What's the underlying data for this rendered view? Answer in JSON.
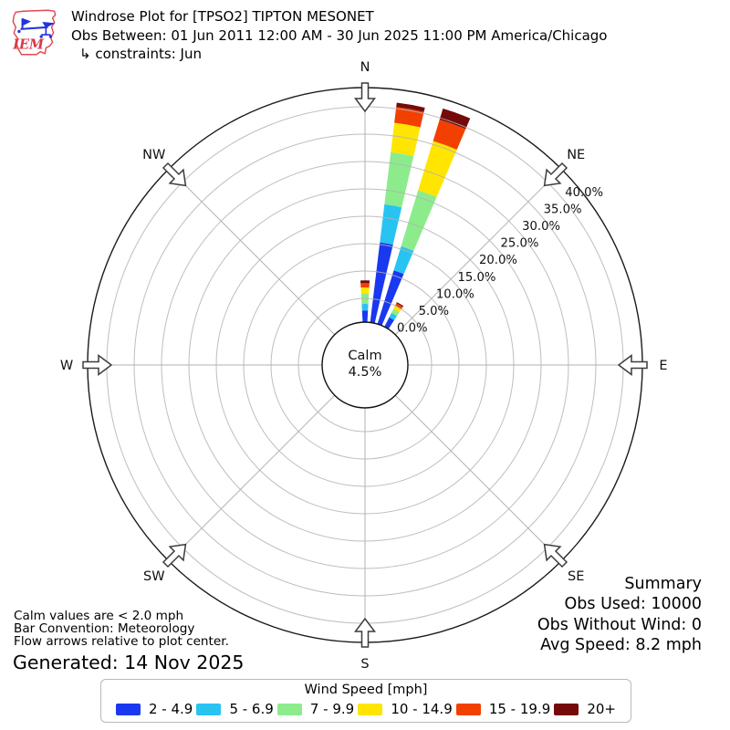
{
  "header": {
    "logo_text": "IEM",
    "title": "Windrose Plot for [TPSO2] TIPTON MESONET",
    "subtitle": "Obs Between: 01 Jun 2011 12:00 AM - 30 Jun 2025 11:00 PM America/Chicago",
    "constraints": "↳ constraints: Jun"
  },
  "chart_data": {
    "type": "windrose",
    "units": "mph",
    "bar_convention": "Meteorology",
    "calm": {
      "label": "Calm",
      "value": "4.5%"
    },
    "radial_tick_pcts": [
      0,
      5,
      10,
      15,
      20,
      25,
      30,
      35,
      40
    ],
    "radial_tick_labels": [
      "0.0%",
      "5.0%",
      "10.0%",
      "15.0%",
      "20.0%",
      "25.0%",
      "30.0%",
      "35.0%",
      "40.0%"
    ],
    "rmax_pct": 43.5,
    "radial_label_angle_deg": 51.7,
    "compass": [
      {
        "label": "N",
        "deg": 0
      },
      {
        "label": "NE",
        "deg": 45
      },
      {
        "label": "E",
        "deg": 90
      },
      {
        "label": "SE",
        "deg": 135
      },
      {
        "label": "S",
        "deg": 180
      },
      {
        "label": "SW",
        "deg": 225
      },
      {
        "label": "W",
        "deg": 270
      },
      {
        "label": "NW",
        "deg": 315
      }
    ],
    "speed_bins": [
      {
        "label": "2 - 4.9",
        "color": "#1a38f0"
      },
      {
        "label": "5 - 6.9",
        "color": "#29c3f2"
      },
      {
        "label": "7 - 9.9",
        "color": "#8cec8c"
      },
      {
        "label": "10 - 14.9",
        "color": "#ffe500"
      },
      {
        "label": "15 - 19.9",
        "color": "#f24000"
      },
      {
        "label": "20+",
        "color": "#750a0a"
      }
    ],
    "direction_sector_deg": 10,
    "bar_width_deg": 6.2,
    "bars": [
      {
        "dir_deg": 0,
        "total_pct": 8.3,
        "segments_pct": [
          2.8,
          1.2,
          1.9,
          1.1,
          0.8,
          0.5
        ]
      },
      {
        "dir_deg": 10,
        "total_pct": 41.1,
        "segments_pct": [
          15.4,
          7.0,
          9.6,
          5.4,
          2.9,
          0.8
        ]
      },
      {
        "dir_deg": 20,
        "total_pct": 41.8,
        "segments_pct": [
          10.9,
          4.6,
          10.7,
          9.4,
          4.1,
          2.1
        ]
      },
      {
        "dir_deg": 30,
        "total_pct": 5.7,
        "segments_pct": [
          2.6,
          0.9,
          0.8,
          0.65,
          0.55,
          0.2
        ]
      }
    ]
  },
  "footer": {
    "calm_note": "Calm values are < 2.0 mph",
    "convention": "Bar Convention: Meteorology",
    "flow_note": "Flow arrows relative to plot center.",
    "generated": "Generated: 14 Nov 2025"
  },
  "summary": {
    "title": "Summary",
    "obs_used": "Obs Used: 10000",
    "obs_without_wind": "Obs Without Wind: 0",
    "avg_speed": "Avg Speed: 8.2 mph"
  },
  "legend": {
    "title": "Wind Speed [mph]"
  }
}
